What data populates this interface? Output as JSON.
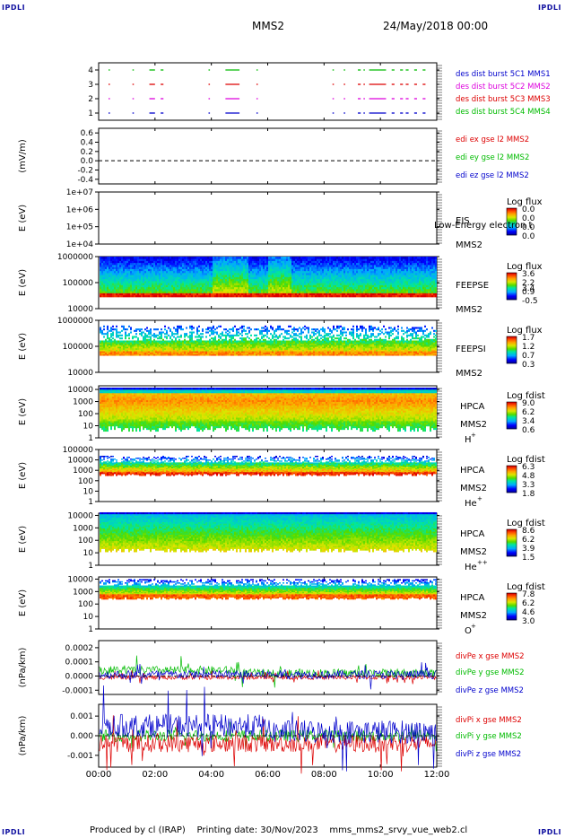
{
  "corners": {
    "tl": "IPDLI",
    "tr": "IPDLI",
    "bl": "IPDLI",
    "br": "IPDLI"
  },
  "header": {
    "spacecraft": "MMS2",
    "datetime": "24/May/2018 00:00"
  },
  "footer": {
    "produced": "Produced by cl (IRAP)",
    "printing": "Printing date: 30/Nov/2023",
    "filename": "mms_mms2_srvy_vue_web2.cl"
  },
  "time_axis": {
    "tick_labels": [
      "00:00",
      "02:00",
      "04:00",
      "06:00",
      "08:00",
      "10:00",
      "12:00"
    ],
    "tick_hours": [
      0,
      2,
      4,
      6,
      8,
      10,
      12
    ],
    "range_hours": [
      0,
      12
    ]
  },
  "colors": {
    "blue": "#0000cc",
    "magenta": "#dd00dd",
    "red": "#dd0000",
    "green": "#00bb00"
  },
  "chart_data": [
    {
      "type": "scatter",
      "panel": "burst",
      "ylim": [
        0.5,
        4.5
      ],
      "ytick_labels": [
        "4",
        "3",
        "2",
        "1"
      ],
      "ytick_values": [
        4,
        3,
        2,
        1
      ],
      "legend": [
        {
          "text": "des dist burst 5C1 MMS1",
          "color": "#0000cc"
        },
        {
          "text": "des dist burst 5C2 MMS2",
          "color": "#dd00dd"
        },
        {
          "text": "des dist burst 5C3 MMS3",
          "color": "#dd0000"
        },
        {
          "text": "des dist burst 5C4 MMS4",
          "color": "#00bb00"
        }
      ],
      "segments": [
        [
          0.35,
          0.4
        ],
        [
          1.2,
          1.25
        ],
        [
          1.8,
          2.0
        ],
        [
          2.2,
          2.3
        ],
        [
          3.9,
          3.95
        ],
        [
          4.5,
          5.0
        ],
        [
          5.6,
          5.65
        ],
        [
          8.3,
          8.35
        ],
        [
          8.7,
          8.75
        ],
        [
          9.2,
          9.3
        ],
        [
          9.4,
          9.45
        ],
        [
          9.6,
          10.2
        ],
        [
          10.4,
          10.5
        ],
        [
          10.7,
          10.8
        ],
        [
          10.9,
          11.0
        ],
        [
          11.2,
          11.3
        ],
        [
          11.5,
          11.6
        ]
      ]
    },
    {
      "type": "line",
      "panel": "edi",
      "ylabel": "(mV/m)",
      "ylim": [
        -0.5,
        0.7
      ],
      "ytick_labels": [
        "0.6",
        "0.4",
        "0.2",
        "0.0",
        "-0.2",
        "-0.4"
      ],
      "ytick_values": [
        0.6,
        0.4,
        0.2,
        0.0,
        -0.2,
        -0.4
      ],
      "legend": [
        {
          "text": "edi ex gse l2 MMS2",
          "color": "#dd0000"
        },
        {
          "text": "edi ey gse l2 MMS2",
          "color": "#00bb00"
        },
        {
          "text": "edi ez gse l2 MMS2",
          "color": "#0000cc"
        }
      ]
    },
    {
      "type": "heatmap",
      "panel": "eis",
      "ylabel": "E (eV)",
      "yscale": "log",
      "ylim": [
        10000,
        10000000
      ],
      "ytick_labels": [
        "1e+07",
        "1e+06",
        "1e+05",
        "1e+04"
      ],
      "ytick_values": [
        10000000,
        1000000,
        100000,
        10000
      ],
      "instrument": "EIS",
      "spacecraft": "MMS2",
      "species": "Low-Energy electron t",
      "colorbar": {
        "title": "Log flux",
        "labels": [
          "0.0",
          "0.0",
          "0.0",
          "0.0"
        ]
      }
    },
    {
      "type": "heatmap",
      "panel": "feepse",
      "ylabel": "E (eV)",
      "yscale": "log",
      "ylim": [
        10000,
        1000000
      ],
      "ytick_labels": [
        "1000000",
        "100000",
        "10000"
      ],
      "ytick_values": [
        1000000,
        100000,
        10000
      ],
      "instrument": "FEEPSE",
      "spacecraft": "MMS2",
      "colorbar": {
        "title": "Log flux",
        "labels": [
          "3.6",
          "2.2",
          "0.9",
          "-0.5"
        ],
        "extra_label": "3.4"
      }
    },
    {
      "type": "heatmap",
      "panel": "feepsi",
      "ylabel": "E (eV)",
      "yscale": "log",
      "ylim": [
        10000,
        1000000
      ],
      "ytick_labels": [
        "1000000",
        "100000",
        "10000"
      ],
      "ytick_values": [
        1000000,
        100000,
        10000
      ],
      "instrument": "FEEPSI",
      "spacecraft": "MMS2",
      "colorbar": {
        "title": "Log flux",
        "labels": [
          "1.7",
          "1.2",
          "0.7",
          "0.3"
        ]
      }
    },
    {
      "type": "heatmap",
      "panel": "hpca_h",
      "ylabel": "E (eV)",
      "yscale": "log",
      "ylim": [
        1,
        20000
      ],
      "ytick_labels": [
        "10000",
        "1000",
        "100",
        "10",
        "1"
      ],
      "ytick_values": [
        10000,
        1000,
        100,
        10,
        1
      ],
      "instrument": "HPCA",
      "spacecraft": "MMS2",
      "species": "H",
      "species_sup": "+",
      "colorbar": {
        "title": "Log fdist",
        "labels": [
          "9.0",
          "6.2",
          "3.4",
          "0.6"
        ]
      }
    },
    {
      "type": "heatmap",
      "panel": "hpca_he",
      "ylabel": "E (eV)",
      "yscale": "log",
      "ylim": [
        1,
        100000
      ],
      "ytick_labels": [
        "100000",
        "10000",
        "1000",
        "100",
        "10",
        "1"
      ],
      "ytick_values": [
        100000,
        10000,
        1000,
        100,
        10,
        1
      ],
      "instrument": "HPCA",
      "spacecraft": "MMS2",
      "species": "He",
      "species_sup": "+",
      "colorbar": {
        "title": "Log fdist",
        "labels": [
          "6.3",
          "4.8",
          "3.3",
          "1.8"
        ]
      }
    },
    {
      "type": "heatmap",
      "panel": "hpca_he2",
      "ylabel": "E (eV)",
      "yscale": "log",
      "ylim": [
        1,
        15000
      ],
      "ytick_labels": [
        "10000",
        "1000",
        "100",
        "10",
        "1"
      ],
      "ytick_values": [
        10000,
        1000,
        100,
        10,
        1
      ],
      "instrument": "HPCA",
      "spacecraft": "MMS2",
      "species": "He",
      "species_sup": "++",
      "colorbar": {
        "title": "Log fdist",
        "labels": [
          "8.6",
          "6.2",
          "3.9",
          "1.5"
        ]
      }
    },
    {
      "type": "heatmap",
      "panel": "hpca_o",
      "ylabel": "E (eV)",
      "yscale": "log",
      "ylim": [
        1,
        15000
      ],
      "ytick_labels": [
        "10000",
        "1000",
        "100",
        "10",
        "1"
      ],
      "ytick_values": [
        10000,
        1000,
        100,
        10,
        1
      ],
      "instrument": "HPCA",
      "spacecraft": "MMS2",
      "species": "O",
      "species_sup": "+",
      "colorbar": {
        "title": "Log fdist",
        "labels": [
          "7.8",
          "6.2",
          "4.6",
          "3.0"
        ]
      }
    },
    {
      "type": "line",
      "panel": "divpe",
      "ylabel": "(nPa/km)",
      "ylim": [
        -0.00013,
        0.00025
      ],
      "ytick_labels": [
        "0.0002",
        "0.0001",
        "0.0000",
        "-0.0001"
      ],
      "ytick_values": [
        0.0002,
        0.0001,
        0.0,
        -0.0001
      ],
      "legend": [
        {
          "text": "divPe x gse MMS2",
          "color": "#dd0000"
        },
        {
          "text": "divPe y gse MMS2",
          "color": "#00bb00"
        },
        {
          "text": "divPe z gse MMS2",
          "color": "#0000cc"
        }
      ]
    },
    {
      "type": "line",
      "panel": "divpi",
      "ylabel": "(nPa/km)",
      "ylim": [
        -0.0016,
        0.0016
      ],
      "ytick_labels": [
        "0.001",
        "0.000",
        "-0.001"
      ],
      "ytick_values": [
        0.001,
        0.0,
        -0.001
      ],
      "legend": [
        {
          "text": "divPi x gse MMS2",
          "color": "#dd0000"
        },
        {
          "text": "divPi y gse MMS2",
          "color": "#00bb00"
        },
        {
          "text": "divPi z gse MMS2",
          "color": "#0000cc"
        }
      ]
    }
  ]
}
